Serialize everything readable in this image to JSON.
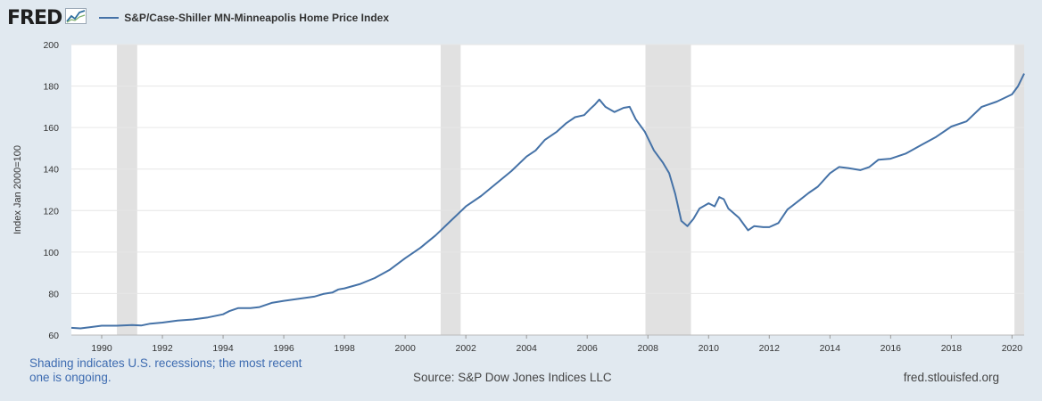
{
  "header": {
    "logo_text": "FRED",
    "logo_icon": "trend-line-icon",
    "legend_label": "S&P/Case-Shiller MN-Minneapolis Home Price Index"
  },
  "footer": {
    "recession_note": "Shading indicates U.S. recessions; the most recent one is ongoing.",
    "source": "Source: S&P Dow Jones Indices LLC",
    "site": "fred.stlouisfed.org"
  },
  "colors": {
    "series": "#4572a7",
    "recession": "#e1e1e1",
    "background": "#e1e9f0"
  },
  "chart_data": {
    "type": "line",
    "title": "S&P/Case-Shiller MN-Minneapolis Home Price Index",
    "xlabel": "",
    "ylabel": "Index Jan 2000=100",
    "xlim": [
      1989.0,
      2020.4
    ],
    "ylim": [
      60,
      200
    ],
    "x_ticks": [
      "1990",
      "1992",
      "1994",
      "1996",
      "1998",
      "2000",
      "2002",
      "2004",
      "2006",
      "2008",
      "2010",
      "2012",
      "2014",
      "2016",
      "2018",
      "2020"
    ],
    "y_ticks": [
      60,
      80,
      100,
      120,
      140,
      160,
      180,
      200
    ],
    "grid": true,
    "legend_position": "top-left",
    "recessions": [
      [
        1990.5,
        1991.17
      ],
      [
        2001.17,
        2001.83
      ],
      [
        2007.92,
        2009.42
      ],
      [
        2020.08,
        2020.4
      ]
    ],
    "series": [
      {
        "name": "S&P/Case-Shiller MN-Minneapolis Home Price Index",
        "x": [
          1989.0,
          1989.3,
          1989.6,
          1990.0,
          1990.5,
          1991.0,
          1991.3,
          1991.6,
          1992.0,
          1992.5,
          1993.0,
          1993.5,
          1994.0,
          1994.2,
          1994.5,
          1994.9,
          1995.2,
          1995.6,
          1996.0,
          1996.5,
          1997.0,
          1997.3,
          1997.6,
          1997.8,
          1998.0,
          1998.5,
          1999.0,
          1999.5,
          2000.0,
          2000.5,
          2001.0,
          2001.5,
          2002.0,
          2002.5,
          2003.0,
          2003.5,
          2004.0,
          2004.3,
          2004.6,
          2005.0,
          2005.3,
          2005.6,
          2005.9,
          2006.1,
          2006.25,
          2006.4,
          2006.6,
          2006.9,
          2007.2,
          2007.4,
          2007.6,
          2007.9,
          2008.2,
          2008.5,
          2008.7,
          2008.9,
          2009.1,
          2009.3,
          2009.5,
          2009.7,
          2010.0,
          2010.2,
          2010.35,
          2010.5,
          2010.65,
          2011.0,
          2011.3,
          2011.5,
          2011.8,
          2012.0,
          2012.3,
          2012.6,
          2013.0,
          2013.3,
          2013.6,
          2014.0,
          2014.3,
          2014.6,
          2015.0,
          2015.3,
          2015.6,
          2016.0,
          2016.5,
          2017.0,
          2017.5,
          2018.0,
          2018.5,
          2019.0,
          2019.5,
          2020.0,
          2020.2,
          2020.4
        ],
        "values": [
          63.5,
          63.2,
          63.8,
          64.5,
          64.5,
          64.8,
          64.6,
          65.5,
          66.0,
          67.0,
          67.5,
          68.5,
          70.0,
          71.5,
          73.0,
          73.0,
          73.5,
          75.5,
          76.5,
          77.5,
          78.5,
          79.8,
          80.5,
          82.0,
          82.5,
          84.5,
          87.5,
          91.5,
          97.0,
          102.0,
          108.0,
          115.0,
          122.0,
          127.0,
          133.0,
          139.0,
          146.0,
          149.0,
          154.0,
          158.0,
          162.0,
          165.0,
          166.0,
          169.0,
          171.0,
          173.5,
          170.0,
          167.5,
          169.5,
          170.0,
          164.0,
          158.0,
          149.0,
          143.0,
          138.0,
          128.0,
          115.0,
          112.5,
          116.0,
          121.0,
          123.5,
          122.0,
          126.5,
          125.5,
          121.0,
          116.5,
          110.5,
          112.5,
          112.0,
          112.0,
          114.0,
          120.5,
          125.0,
          128.5,
          131.5,
          138.0,
          141.0,
          140.5,
          139.5,
          141.0,
          144.5,
          145.0,
          147.5,
          151.5,
          155.5,
          160.5,
          163.0,
          170.0,
          172.5,
          176.0,
          180.0,
          186.0
        ]
      }
    ]
  }
}
